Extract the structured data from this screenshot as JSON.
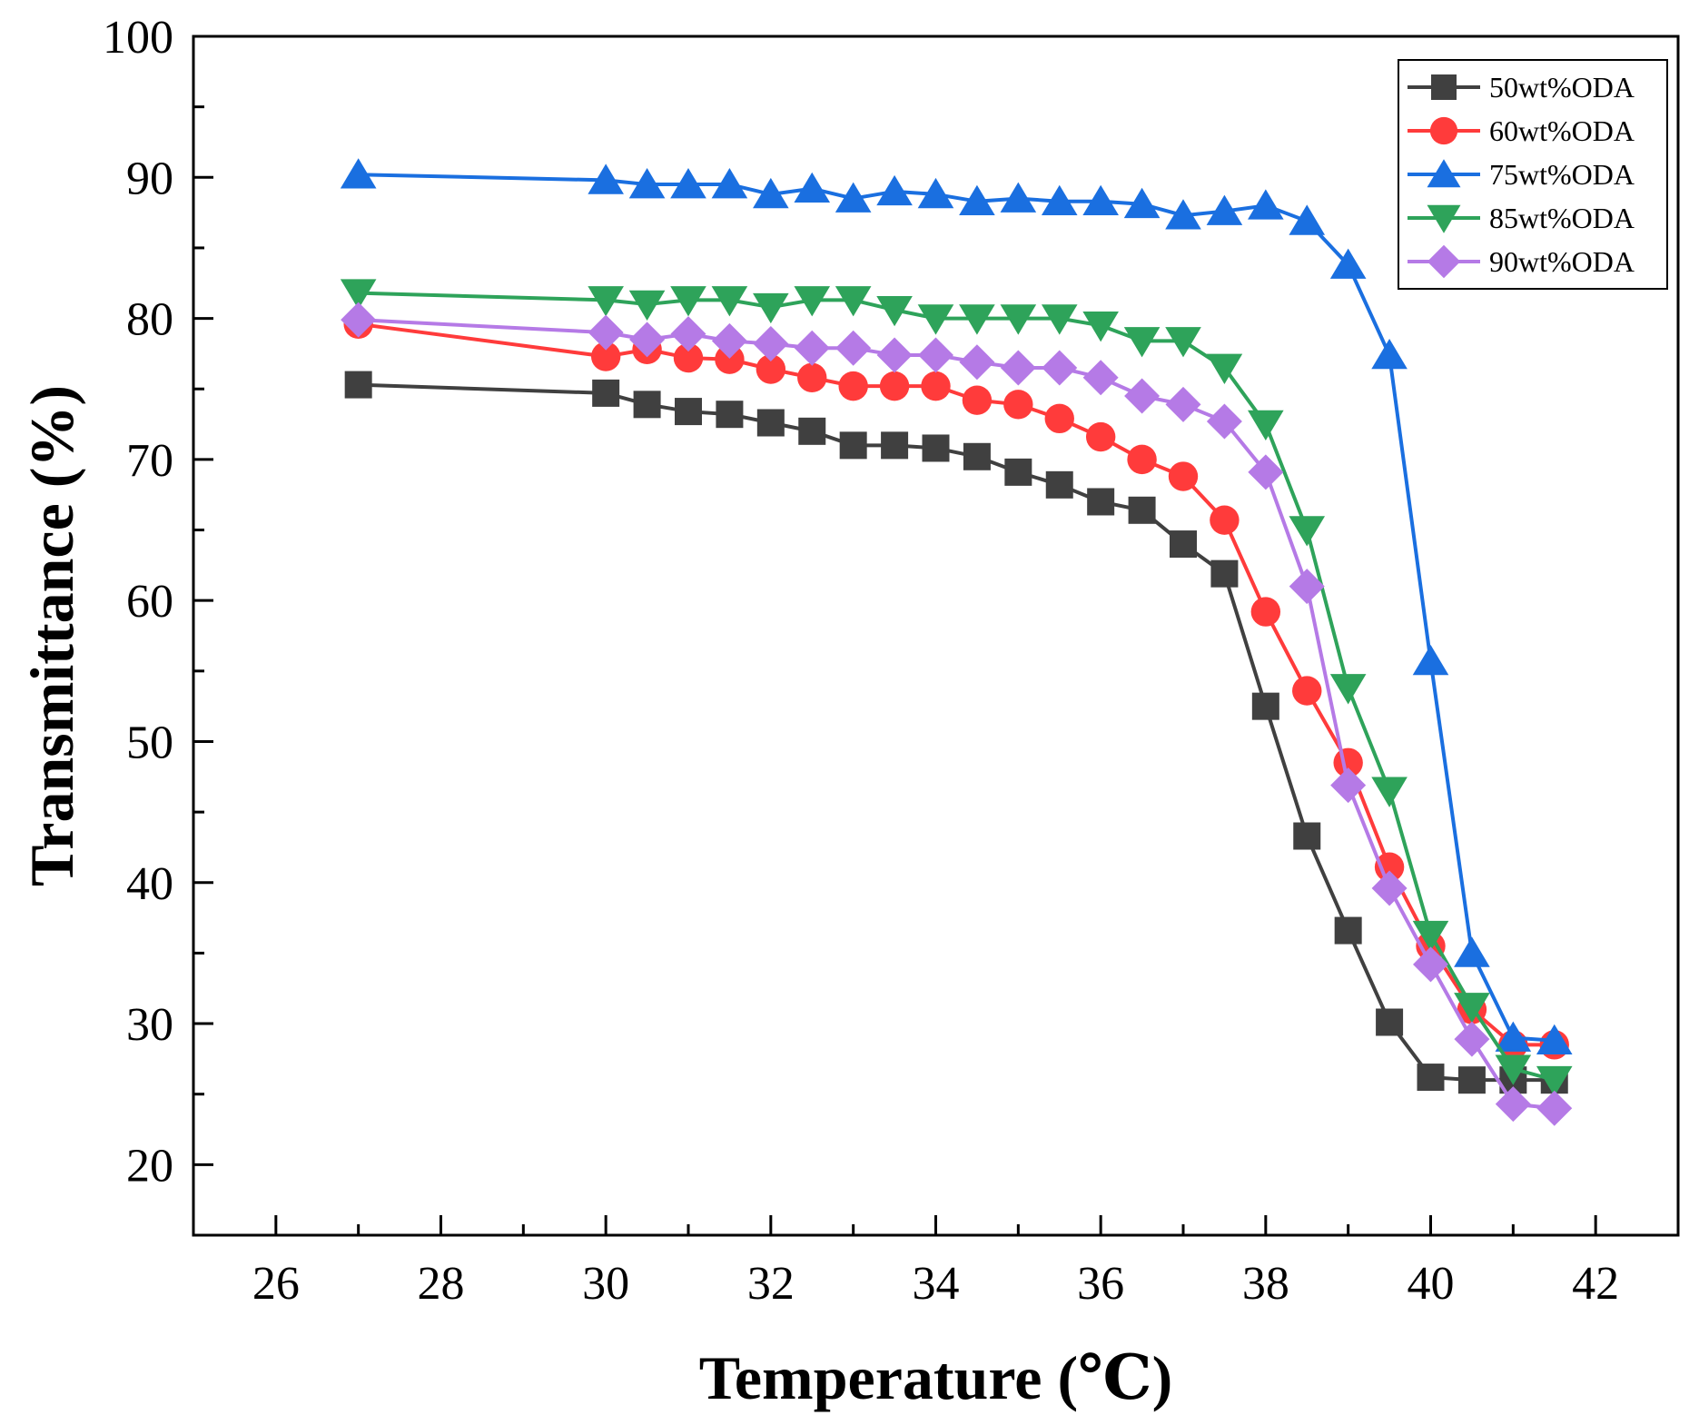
{
  "chart_data": {
    "type": "line",
    "title": "",
    "xlabel": "Temperature (℃)",
    "ylabel": "Transmittance (%)",
    "xlim": [
      25,
      43
    ],
    "ylim": [
      15,
      100
    ],
    "xticks": [
      26,
      28,
      30,
      32,
      34,
      36,
      38,
      40,
      42
    ],
    "yticks": [
      20,
      30,
      40,
      50,
      60,
      70,
      80,
      90,
      100
    ],
    "xtick_labels": [
      "26",
      "28",
      "30",
      "32",
      "34",
      "36",
      "38",
      "40",
      "42"
    ],
    "ytick_labels": [
      "20",
      "30",
      "40",
      "50",
      "60",
      "70",
      "80",
      "90",
      "100"
    ],
    "grid": false,
    "legend_position": "top-right",
    "x": [
      27,
      30,
      30.5,
      31,
      31.5,
      32,
      32.5,
      33,
      33.5,
      34,
      34.5,
      35,
      35.5,
      36,
      36.5,
      37,
      37.5,
      38,
      38.5,
      39,
      39.5,
      40,
      40.5,
      41,
      41.5
    ],
    "series": [
      {
        "name": "50wt%ODA",
        "color": "#404040",
        "marker": "square",
        "values": [
          75.3,
          74.7,
          73.9,
          73.4,
          73.2,
          72.6,
          72.0,
          71.0,
          71.0,
          70.8,
          70.2,
          69.1,
          68.2,
          67.0,
          66.4,
          64.0,
          61.9,
          52.5,
          43.3,
          36.6,
          30.1,
          26.2,
          26.0,
          26.0,
          26.0
        ]
      },
      {
        "name": "60wt%ODA",
        "color": "#ff3b3b",
        "marker": "circle",
        "values": [
          79.6,
          77.3,
          77.8,
          77.2,
          77.1,
          76.4,
          75.8,
          75.2,
          75.2,
          75.2,
          74.2,
          73.9,
          72.9,
          71.6,
          70.0,
          68.8,
          65.7,
          59.2,
          53.6,
          48.5,
          41.1,
          35.5,
          31.0,
          28.5,
          28.5
        ]
      },
      {
        "name": "75wt%ODA",
        "color": "#1a6fe0",
        "marker": "triangle-up",
        "values": [
          90.2,
          89.8,
          89.5,
          89.5,
          89.5,
          88.8,
          89.2,
          88.5,
          89.0,
          88.8,
          88.3,
          88.5,
          88.3,
          88.3,
          88.1,
          87.3,
          87.6,
          88.0,
          86.9,
          83.8,
          77.4,
          55.7,
          35.0,
          29.0,
          28.8
        ]
      },
      {
        "name": "85wt%ODA",
        "color": "#2ea35a",
        "marker": "triangle-down",
        "values": [
          81.8,
          81.3,
          81.0,
          81.3,
          81.3,
          80.8,
          81.3,
          81.3,
          80.6,
          80.0,
          80.0,
          80.0,
          80.0,
          79.5,
          78.4,
          78.4,
          76.5,
          72.5,
          65.0,
          53.8,
          46.5,
          36.3,
          31.2,
          26.8,
          26.0
        ]
      },
      {
        "name": "90wt%ODA",
        "color": "#b57ae6",
        "marker": "diamond",
        "values": [
          79.9,
          79.0,
          78.5,
          78.9,
          78.4,
          78.2,
          77.9,
          77.9,
          77.4,
          77.4,
          76.9,
          76.5,
          76.5,
          75.8,
          74.5,
          73.9,
          72.7,
          69.1,
          61.0,
          46.9,
          39.6,
          34.2,
          28.9,
          24.3,
          24.0
        ]
      }
    ]
  }
}
